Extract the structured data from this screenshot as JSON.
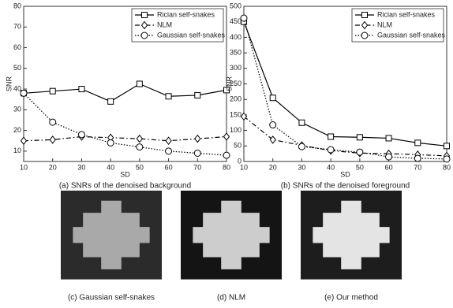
{
  "chart_data": [
    {
      "type": "line",
      "caption": "(a) SNRs  of the denoised background",
      "xlabel": "SD",
      "ylabel": "SNR",
      "x": [
        10,
        20,
        30,
        40,
        50,
        60,
        70,
        80
      ],
      "xlim": [
        10,
        80
      ],
      "xticks": [
        10,
        20,
        30,
        40,
        50,
        60,
        70,
        80
      ],
      "ylim": [
        5,
        80
      ],
      "yticks": [
        10,
        20,
        30,
        40,
        50,
        60,
        70,
        80
      ],
      "legend": "upper right",
      "series": [
        {
          "name": "Rician self-snakes",
          "color": "#000000",
          "marker": "square",
          "linestyle": "solid",
          "values": [
            38,
            39,
            40,
            34,
            42.5,
            36.5,
            37,
            39.5
          ]
        },
        {
          "name": "NLM",
          "color": "#000000",
          "marker": "diamond",
          "linestyle": "dashdot",
          "values": [
            15,
            15.5,
            17,
            16.5,
            16,
            15,
            16,
            17
          ]
        },
        {
          "name": "Gaussian self-snakes",
          "color": "#000000",
          "marker": "circle",
          "linestyle": "dotted",
          "values": [
            38,
            24,
            18,
            14,
            12,
            10,
            9,
            8
          ]
        }
      ]
    },
    {
      "type": "line",
      "caption": "(b) SNRs of the denoised foreground",
      "xlabel": "SD",
      "ylabel": "SNR",
      "x": [
        10,
        20,
        30,
        40,
        50,
        60,
        70,
        80
      ],
      "xlim": [
        10,
        80
      ],
      "xticks": [
        10,
        20,
        30,
        40,
        50,
        60,
        70,
        80
      ],
      "ylim": [
        0,
        500
      ],
      "yticks": [
        0,
        50,
        100,
        150,
        200,
        250,
        300,
        350,
        400,
        450,
        500
      ],
      "legend": "upper right",
      "series": [
        {
          "name": "Rician self-snakes",
          "color": "#000000",
          "marker": "square",
          "linestyle": "solid",
          "values": [
            450,
            205,
            125,
            80,
            78,
            75,
            60,
            50
          ]
        },
        {
          "name": "NLM",
          "color": "#000000",
          "marker": "diamond",
          "linestyle": "dashdot",
          "values": [
            145,
            70,
            52,
            35,
            27,
            25,
            22,
            18
          ]
        },
        {
          "name": "Gaussian self-snakes",
          "color": "#000000",
          "marker": "circle",
          "linestyle": "dotted",
          "values": [
            462,
            118,
            48,
            38,
            30,
            15,
            10,
            8
          ]
        }
      ]
    }
  ],
  "images": [
    {
      "caption": "(c) Gaussian self-snakes"
    },
    {
      "caption": "(d) NLM"
    },
    {
      "caption": "(e) Our method"
    }
  ]
}
